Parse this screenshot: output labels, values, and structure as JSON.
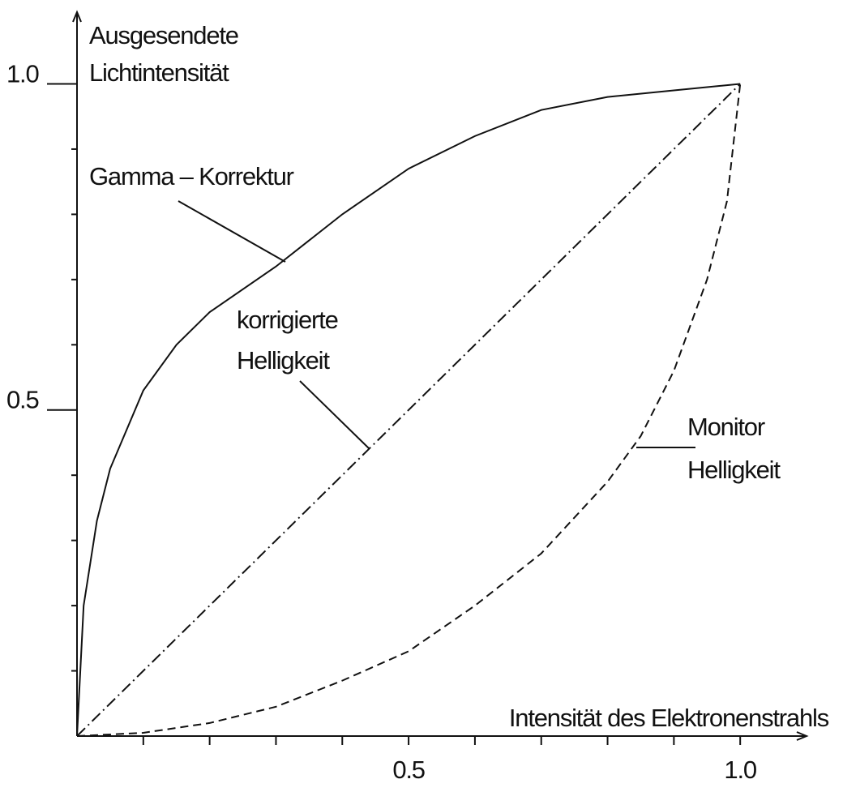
{
  "chart_data": {
    "type": "line",
    "y_label": [
      "Ausgesendete",
      "Lichtintensität"
    ],
    "x_label": "Intensität des Elektronenstrahls",
    "xlim": [
      0,
      1.1
    ],
    "ylim": [
      0,
      1.11
    ],
    "xticks": [
      0.5,
      {
        "value": 1,
        "label": "1.0"
      }
    ],
    "yticks": [
      0.5,
      {
        "value": 1,
        "label": "1.0"
      }
    ],
    "xminor_ticks": [
      0.1,
      0.2,
      0.3,
      0.4,
      0.6,
      0.7,
      0.8,
      0.9
    ],
    "yminor_ticks": [
      0.1,
      0.2,
      0.3,
      0.4,
      0.6,
      0.7,
      0.8,
      0.9
    ],
    "series": [
      {
        "name": "Gamma – Korrektur",
        "color": "#111111",
        "linestyle": "solid",
        "x": [
          0,
          0.01,
          0.03,
          0.05,
          0.1,
          0.15,
          0.2,
          0.3,
          0.4,
          0.5,
          0.6,
          0.7,
          0.8,
          0.9,
          1.0
        ],
        "values": [
          0,
          0.2,
          0.33,
          0.41,
          0.53,
          0.6,
          0.65,
          0.72,
          0.8,
          0.87,
          0.92,
          0.96,
          0.98,
          0.99,
          1.0
        ]
      },
      {
        "name": "korrigierte Helligkeit",
        "color": "#111111",
        "linestyle": "dashdot",
        "x": [
          0,
          1.0
        ],
        "values": [
          0,
          1.0
        ]
      },
      {
        "name": "Monitor Helligkeit",
        "color": "#111111",
        "linestyle": "dashed",
        "x": [
          0,
          0.1,
          0.2,
          0.3,
          0.4,
          0.5,
          0.6,
          0.7,
          0.8,
          0.85,
          0.9,
          0.95,
          0.98,
          1.0
        ],
        "values": [
          0,
          0.005,
          0.02,
          0.045,
          0.085,
          0.13,
          0.2,
          0.28,
          0.39,
          0.46,
          0.56,
          0.7,
          0.82,
          1.0
        ]
      }
    ],
    "annotations": [
      [
        "Gamma – Korrektur"
      ],
      [
        "korrigierte",
        "Helligkeit"
      ],
      [
        "Monitor",
        "Helligkeit"
      ]
    ]
  }
}
